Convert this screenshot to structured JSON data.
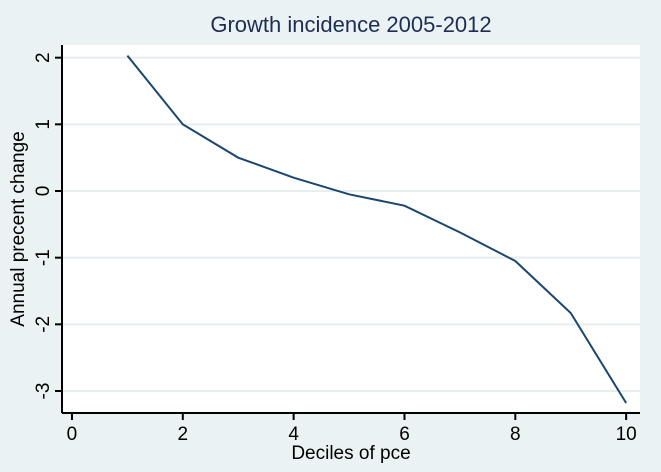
{
  "chart_data": {
    "type": "line",
    "title": "Growth incidence 2005-2012",
    "xlabel": "Deciles of pce",
    "ylabel": "Annual precent change",
    "x": [
      1,
      2,
      3,
      4,
      5,
      6,
      7,
      8,
      9,
      10
    ],
    "y": [
      2.03,
      1.0,
      0.5,
      0.2,
      -0.05,
      -0.22,
      -0.62,
      -1.05,
      -1.83,
      -3.18
    ],
    "xticks": [
      0,
      2,
      4,
      6,
      8,
      10
    ],
    "yticks": [
      2,
      1,
      0,
      -1,
      -2,
      -3
    ],
    "xlim": [
      -0.18,
      10.25
    ],
    "ylim": [
      -3.33,
      2.19
    ],
    "grid": "horizontal-only",
    "legend": "none",
    "colors": {
      "canvas_background": "#EAF2F3",
      "plot_background": "#FFFFFF",
      "gridline": "#E6EEF0",
      "axis": "#000000",
      "tick_text": "#000000",
      "line": "#1A476F",
      "title": "#1E2D53"
    }
  }
}
